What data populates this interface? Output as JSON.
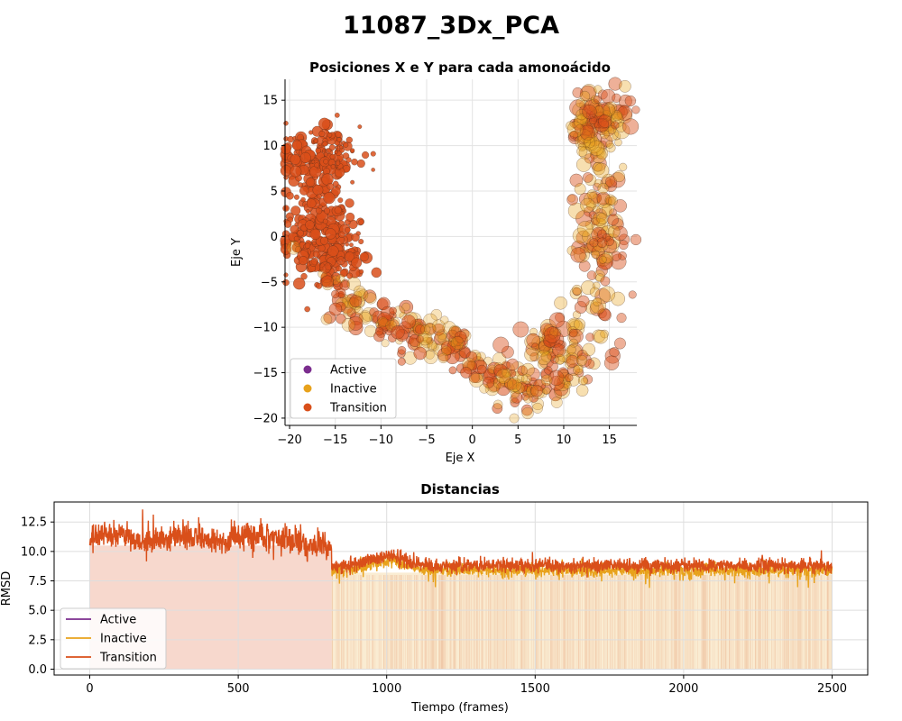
{
  "figure": {
    "suptitle": "11087_3Dx_PCA"
  },
  "colors": {
    "Active": "#7b2d8e",
    "Inactive": "#e8a21c",
    "Transition": "#d94f1a"
  },
  "chart_data": [
    {
      "type": "scatter",
      "title": "Posiciones X e Y para cada amonoácido",
      "xlabel": "Eje X",
      "ylabel": "Eje Y",
      "xlim": [
        -20.5,
        18
      ],
      "ylim": [
        -20.8,
        17.3
      ],
      "xticks": [
        -20,
        -15,
        -10,
        -5,
        0,
        5,
        10,
        15
      ],
      "yticks": [
        -20,
        -15,
        -10,
        -5,
        0,
        5,
        10,
        15
      ],
      "grid": true,
      "legend_position": "lower-left",
      "legend": [
        "Active",
        "Inactive",
        "Transition"
      ],
      "clusters": [
        {
          "name": "Transition",
          "x": [
            -21,
            -11
          ],
          "y": [
            -5,
            13
          ],
          "note_count": 500
        },
        {
          "name": "Transition",
          "x": [
            -16,
            8
          ],
          "y": [
            -20,
            -6
          ]
        },
        {
          "name": "Inactive",
          "x": [
            -16,
            8
          ],
          "y": [
            -20,
            -6
          ]
        },
        {
          "name": "Inactive",
          "x": [
            9,
            18
          ],
          "y": [
            -16,
            16
          ]
        },
        {
          "name": "Transition",
          "x": [
            9,
            18
          ],
          "y": [
            -16,
            16
          ]
        }
      ]
    },
    {
      "type": "line",
      "title": "Distancias",
      "xlabel": "Tiempo (frames)",
      "ylabel": "RMSD",
      "xlim": [
        -120,
        2620
      ],
      "ylim": [
        -0.5,
        14.2
      ],
      "xticks": [
        0,
        500,
        1000,
        1500,
        2000,
        2500
      ],
      "yticks": [
        "0.0",
        "2.5",
        "5.0",
        "7.5",
        "10.0",
        "12.5"
      ],
      "grid": true,
      "legend_position": "lower-left",
      "legend": [
        "Active",
        "Inactive",
        "Transition"
      ],
      "segments": [
        {
          "series": "Transition",
          "from": 0,
          "to": 815,
          "level": 11.0
        },
        {
          "series": "Inactive",
          "from": 815,
          "to": 2500,
          "level": 8.4
        },
        {
          "series": "Transition",
          "from": 815,
          "to": 2500,
          "level": 8.8
        }
      ]
    }
  ]
}
